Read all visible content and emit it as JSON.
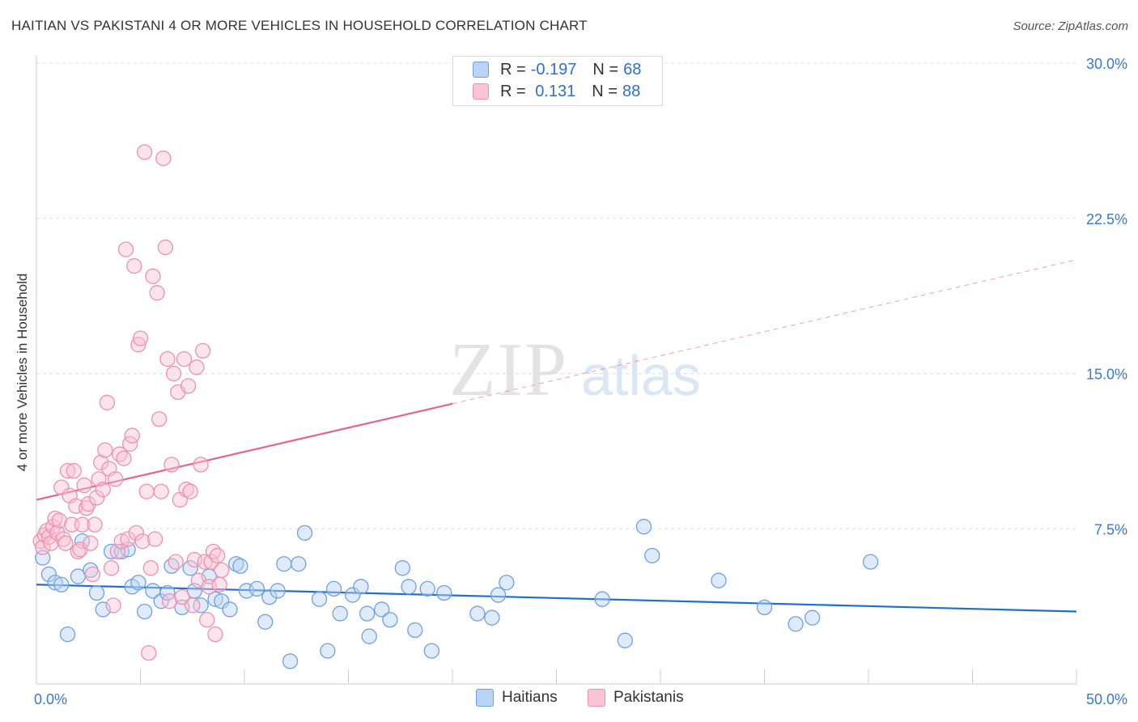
{
  "header": {
    "title": "HAITIAN VS PAKISTANI 4 OR MORE VEHICLES IN HOUSEHOLD CORRELATION CHART",
    "source": "Source: ZipAtlas.com"
  },
  "watermark": {
    "zip": "ZIP",
    "atlas": "atlas"
  },
  "legend_top": {
    "rows": [
      {
        "r_label": "R = ",
        "r_value": "-0.197",
        "n_label": "N = ",
        "n_value": "68"
      },
      {
        "r_label": "R = ",
        "r_value": " 0.131",
        "n_label": "N = ",
        "n_value": "88"
      }
    ]
  },
  "colors": {
    "haitian_fill": "#b8d3f5",
    "haitian_stroke": "#6fa0e0",
    "haitian_line": "#1f6fd0",
    "pakistani_fill": "#f9c4d4",
    "pakistani_stroke": "#ee90ae",
    "pakistani_line": "#e8628c",
    "axis_text": "#3a78d0"
  },
  "chart_data": {
    "type": "scatter",
    "title": "HAITIAN VS PAKISTANI 4 OR MORE VEHICLES IN HOUSEHOLD CORRELATION CHART",
    "xlabel": "",
    "ylabel": "4 or more Vehicles in Household",
    "xlim": [
      0,
      50
    ],
    "ylim": [
      0,
      30
    ],
    "x_tick_labels": [
      "0.0%",
      "50.0%"
    ],
    "y_ticks": [
      7.5,
      15.0,
      22.5,
      30.0
    ],
    "y_tick_labels": [
      "7.5%",
      "15.0%",
      "22.5%",
      "30.0%"
    ],
    "grid": true,
    "legend_placement": "top-center",
    "bottom_legend": [
      "Haitians",
      "Pakistanis"
    ],
    "series": [
      {
        "name": "Haitians",
        "R": -0.197,
        "N": 68,
        "trend": {
          "x": [
            0,
            50
          ],
          "y": [
            4.8,
            3.5
          ],
          "dashed_from": null
        },
        "points": [
          [
            0.3,
            6.1
          ],
          [
            0.6,
            5.3
          ],
          [
            0.9,
            4.9
          ],
          [
            1.2,
            4.8
          ],
          [
            1.5,
            2.4
          ],
          [
            2.0,
            5.2
          ],
          [
            2.2,
            6.9
          ],
          [
            2.6,
            5.5
          ],
          [
            2.9,
            4.4
          ],
          [
            3.2,
            3.6
          ],
          [
            3.6,
            6.4
          ],
          [
            4.1,
            6.4
          ],
          [
            4.4,
            6.5
          ],
          [
            4.6,
            4.7
          ],
          [
            4.9,
            4.9
          ],
          [
            5.2,
            3.5
          ],
          [
            5.6,
            4.5
          ],
          [
            6.0,
            4.0
          ],
          [
            6.3,
            4.4
          ],
          [
            6.5,
            5.7
          ],
          [
            7.0,
            3.7
          ],
          [
            7.4,
            5.6
          ],
          [
            7.6,
            4.5
          ],
          [
            7.9,
            3.8
          ],
          [
            8.3,
            5.2
          ],
          [
            8.6,
            4.1
          ],
          [
            8.9,
            4.0
          ],
          [
            9.3,
            3.6
          ],
          [
            9.6,
            5.8
          ],
          [
            9.8,
            5.7
          ],
          [
            10.1,
            4.5
          ],
          [
            10.6,
            4.6
          ],
          [
            11.0,
            3.0
          ],
          [
            11.2,
            4.2
          ],
          [
            11.6,
            4.5
          ],
          [
            11.9,
            5.8
          ],
          [
            12.2,
            1.1
          ],
          [
            12.6,
            5.8
          ],
          [
            12.9,
            7.3
          ],
          [
            13.6,
            4.1
          ],
          [
            14.0,
            1.6
          ],
          [
            14.3,
            4.6
          ],
          [
            14.6,
            3.4
          ],
          [
            15.2,
            4.3
          ],
          [
            15.6,
            4.7
          ],
          [
            15.9,
            3.4
          ],
          [
            16.0,
            2.3
          ],
          [
            16.6,
            3.6
          ],
          [
            17.0,
            3.1
          ],
          [
            17.6,
            5.6
          ],
          [
            17.9,
            4.7
          ],
          [
            18.2,
            2.6
          ],
          [
            18.8,
            4.6
          ],
          [
            19.0,
            1.6
          ],
          [
            19.6,
            4.4
          ],
          [
            21.2,
            3.4
          ],
          [
            21.9,
            3.2
          ],
          [
            22.2,
            4.3
          ],
          [
            22.6,
            4.9
          ],
          [
            27.2,
            4.1
          ],
          [
            28.3,
            2.1
          ],
          [
            29.2,
            7.6
          ],
          [
            29.6,
            6.2
          ],
          [
            32.8,
            5.0
          ],
          [
            35.0,
            3.7
          ],
          [
            36.5,
            2.9
          ],
          [
            37.3,
            3.2
          ],
          [
            40.1,
            5.9
          ]
        ]
      },
      {
        "name": "Pakistanis",
        "R": 0.131,
        "N": 88,
        "trend": {
          "x": [
            0,
            50
          ],
          "y": [
            8.9,
            20.5
          ],
          "dashed_from": 20
        },
        "points": [
          [
            0.2,
            6.9
          ],
          [
            0.3,
            6.6
          ],
          [
            0.4,
            7.2
          ],
          [
            0.5,
            7.4
          ],
          [
            0.6,
            7.1
          ],
          [
            0.7,
            6.8
          ],
          [
            0.8,
            7.6
          ],
          [
            0.9,
            8.0
          ],
          [
            1.0,
            7.3
          ],
          [
            1.1,
            7.9
          ],
          [
            1.2,
            9.5
          ],
          [
            1.3,
            7.0
          ],
          [
            1.4,
            6.8
          ],
          [
            1.5,
            10.3
          ],
          [
            1.6,
            9.1
          ],
          [
            1.7,
            7.7
          ],
          [
            1.8,
            10.3
          ],
          [
            1.9,
            8.6
          ],
          [
            2.0,
            6.4
          ],
          [
            2.1,
            6.5
          ],
          [
            2.2,
            7.7
          ],
          [
            2.3,
            9.6
          ],
          [
            2.4,
            8.5
          ],
          [
            2.5,
            8.7
          ],
          [
            2.6,
            6.8
          ],
          [
            2.7,
            5.3
          ],
          [
            2.8,
            7.7
          ],
          [
            2.9,
            9.0
          ],
          [
            3.0,
            9.9
          ],
          [
            3.1,
            10.7
          ],
          [
            3.2,
            9.4
          ],
          [
            3.3,
            11.3
          ],
          [
            3.4,
            13.6
          ],
          [
            3.5,
            10.4
          ],
          [
            3.6,
            5.6
          ],
          [
            3.7,
            3.8
          ],
          [
            3.8,
            9.9
          ],
          [
            3.9,
            6.4
          ],
          [
            4.0,
            11.1
          ],
          [
            4.1,
            6.9
          ],
          [
            4.2,
            10.9
          ],
          [
            4.3,
            21.0
          ],
          [
            4.4,
            7.0
          ],
          [
            4.5,
            11.6
          ],
          [
            4.6,
            12.0
          ],
          [
            4.7,
            20.2
          ],
          [
            4.8,
            7.3
          ],
          [
            4.9,
            16.4
          ],
          [
            5.0,
            16.7
          ],
          [
            5.1,
            6.9
          ],
          [
            5.2,
            25.7
          ],
          [
            5.3,
            9.3
          ],
          [
            5.4,
            1.5
          ],
          [
            5.5,
            5.6
          ],
          [
            5.6,
            19.7
          ],
          [
            5.7,
            7.0
          ],
          [
            5.8,
            18.9
          ],
          [
            5.9,
            12.8
          ],
          [
            6.0,
            9.3
          ],
          [
            6.1,
            25.4
          ],
          [
            6.2,
            21.1
          ],
          [
            6.3,
            15.7
          ],
          [
            6.4,
            4.0
          ],
          [
            6.5,
            10.6
          ],
          [
            6.6,
            15.0
          ],
          [
            6.7,
            5.9
          ],
          [
            6.8,
            14.1
          ],
          [
            6.9,
            8.9
          ],
          [
            7.0,
            4.2
          ],
          [
            7.1,
            15.7
          ],
          [
            7.2,
            9.4
          ],
          [
            7.3,
            14.4
          ],
          [
            7.4,
            9.3
          ],
          [
            7.5,
            3.8
          ],
          [
            7.6,
            6.0
          ],
          [
            7.7,
            15.3
          ],
          [
            7.8,
            5.0
          ],
          [
            7.9,
            10.6
          ],
          [
            8.0,
            16.1
          ],
          [
            8.1,
            5.9
          ],
          [
            8.2,
            3.1
          ],
          [
            8.3,
            4.7
          ],
          [
            8.4,
            5.9
          ],
          [
            8.5,
            6.4
          ],
          [
            8.6,
            2.4
          ],
          [
            8.7,
            6.2
          ],
          [
            8.8,
            4.8
          ],
          [
            8.9,
            5.5
          ]
        ]
      }
    ]
  }
}
